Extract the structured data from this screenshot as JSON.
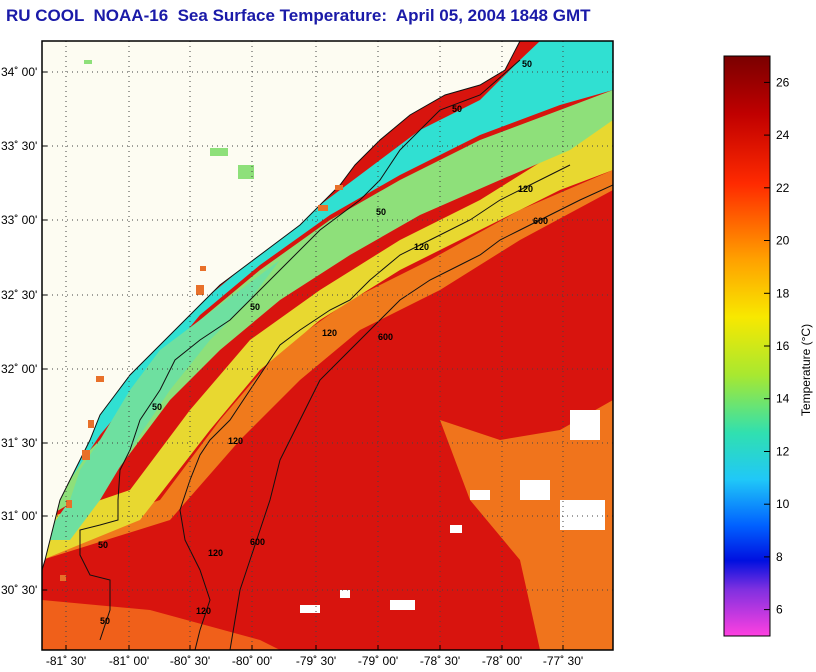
{
  "title": "RU COOL  NOAA-16  Sea Surface Temperature:  April 05, 2004 1848 GMT",
  "map": {
    "lat_labels": [
      "34˚ 00'",
      "33˚ 30'",
      "33˚ 00'",
      "32˚ 30'",
      "32˚ 00'",
      "31˚ 30'",
      "31˚ 00'",
      "30˚ 30'"
    ],
    "lon_labels": [
      "-81˚ 30'",
      "-81˚ 00'",
      "-80˚ 30'",
      "-80˚ 00'",
      "-79˚ 30'",
      "-79˚ 00'",
      "-78˚ 30'",
      "-78˚ 00'",
      "-77˚ 30'"
    ],
    "contour_labels": [
      "50",
      "50",
      "50",
      "50",
      "50",
      "50",
      "50",
      "120",
      "120",
      "120",
      "120",
      "120",
      "120",
      "600",
      "600",
      "600"
    ],
    "colors": {
      "land": "#fdfcf2",
      "cool_water": "#2fe6d8",
      "shelf_water": "#8be678",
      "mid_water": "#f0e030",
      "warm_water": "#f07020",
      "gulf_stream": "#e01a10"
    }
  },
  "colorbar": {
    "label": "Temperature (°C)",
    "ticks": [
      "26",
      "24",
      "22",
      "20",
      "18",
      "16",
      "14",
      "12",
      "10",
      "8",
      "6"
    ],
    "range": [
      5,
      27
    ]
  }
}
